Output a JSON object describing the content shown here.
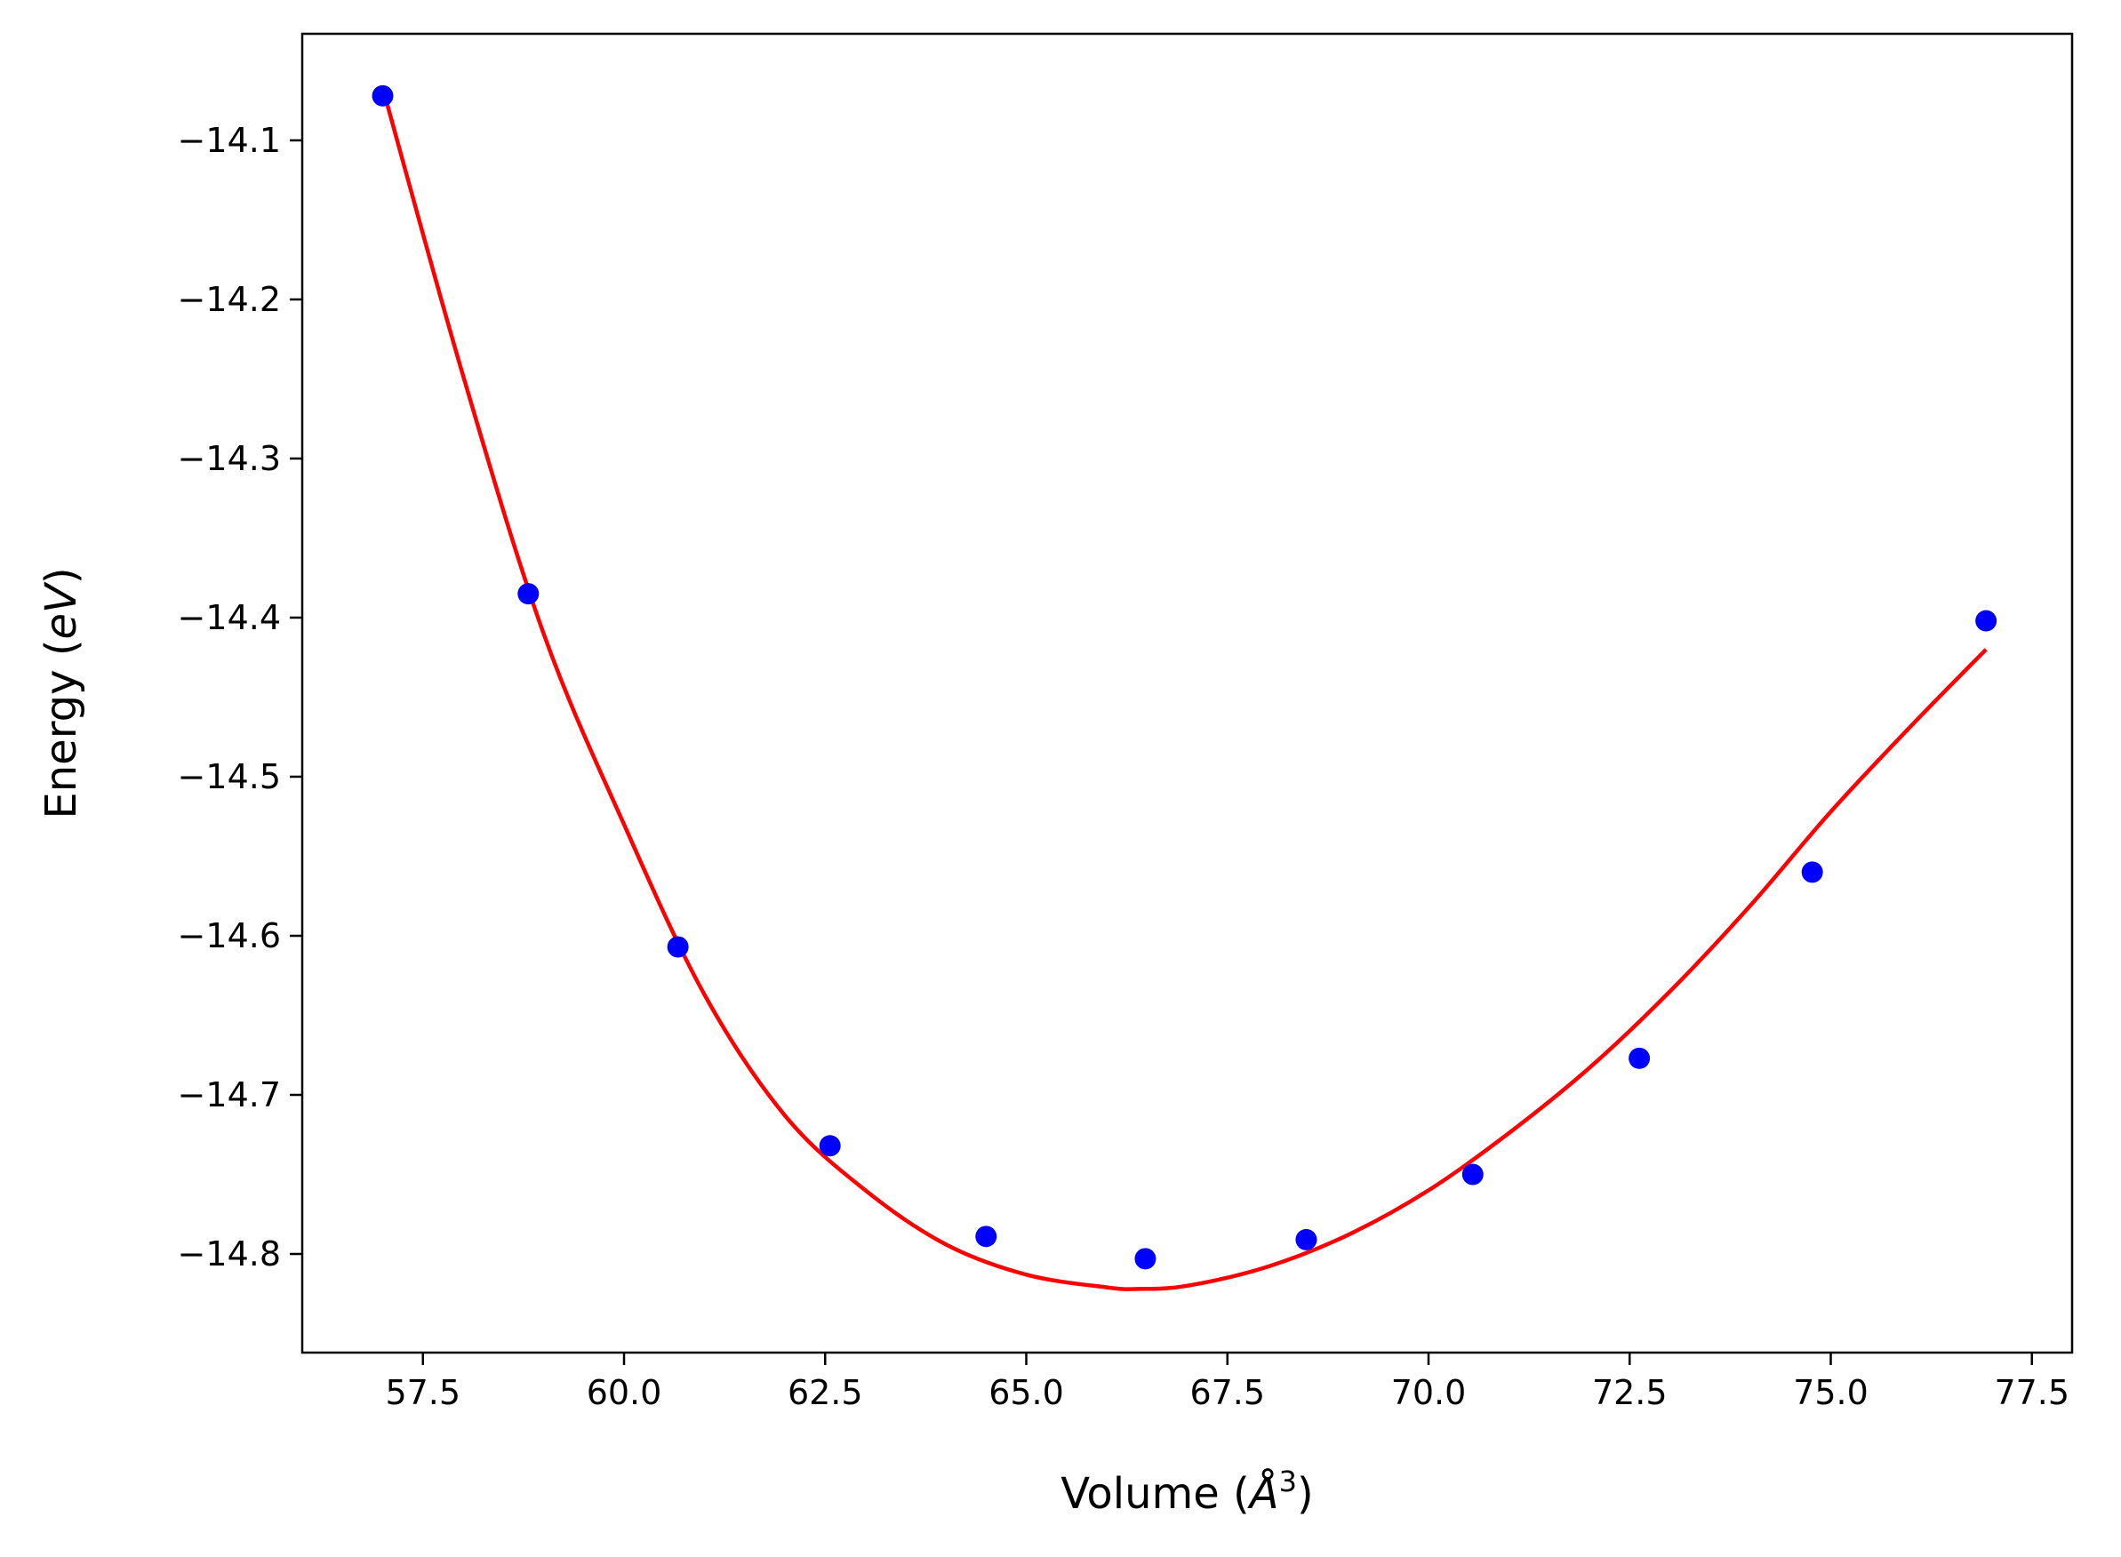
{
  "chart_data": {
    "type": "scatter",
    "title": "",
    "xlabel": "Volume (Å³)",
    "ylabel": "Energy (eV)",
    "xlabel_parts": {
      "pre": "Volume (",
      "unit": "Å",
      "sup": "3",
      "post": ")"
    },
    "ylabel_parts": {
      "pre": "Energy (",
      "unit": "eV",
      "post": ")"
    },
    "xlim": [
      56.0,
      78.0
    ],
    "ylim": [
      -14.862,
      -14.033
    ],
    "xticks": [
      57.5,
      60.0,
      62.5,
      65.0,
      67.5,
      70.0,
      72.5,
      75.0,
      77.5
    ],
    "xtick_labels": [
      "57.5",
      "60.0",
      "62.5",
      "65.0",
      "67.5",
      "70.0",
      "72.5",
      "75.0",
      "77.5"
    ],
    "yticks": [
      -14.1,
      -14.2,
      -14.3,
      -14.4,
      -14.5,
      -14.6,
      -14.7,
      -14.8
    ],
    "ytick_labels": [
      "−14.1",
      "−14.2",
      "−14.3",
      "−14.4",
      "−14.5",
      "−14.6",
      "−14.7",
      "−14.8"
    ],
    "grid": false,
    "legend": "none",
    "series": [
      {
        "kind": "scatter",
        "color": "#0000ff",
        "x": [
          57.0,
          58.81,
          60.67,
          62.56,
          64.5,
          66.48,
          68.48,
          70.55,
          72.62,
          74.77,
          76.93
        ],
        "y": [
          -14.072,
          -14.385,
          -14.607,
          -14.732,
          -14.789,
          -14.803,
          -14.791,
          -14.75,
          -14.677,
          -14.56,
          -14.402
        ]
      },
      {
        "kind": "line",
        "color": "#ff0000",
        "x": [
          57.0,
          58.0,
          59.0,
          60.0,
          61.0,
          62.0,
          63.0,
          64.0,
          65.0,
          66.0,
          66.4,
          67.0,
          68.0,
          69.0,
          70.0,
          71.0,
          72.0,
          73.0,
          74.0,
          75.0,
          76.0,
          76.93
        ],
        "y": [
          -14.067,
          -14.248,
          -14.41,
          -14.53,
          -14.637,
          -14.713,
          -14.76,
          -14.794,
          -14.813,
          -14.821,
          -14.822,
          -14.82,
          -14.808,
          -14.788,
          -14.76,
          -14.724,
          -14.683,
          -14.635,
          -14.581,
          -14.522,
          -14.468,
          -14.42
        ]
      }
    ]
  }
}
